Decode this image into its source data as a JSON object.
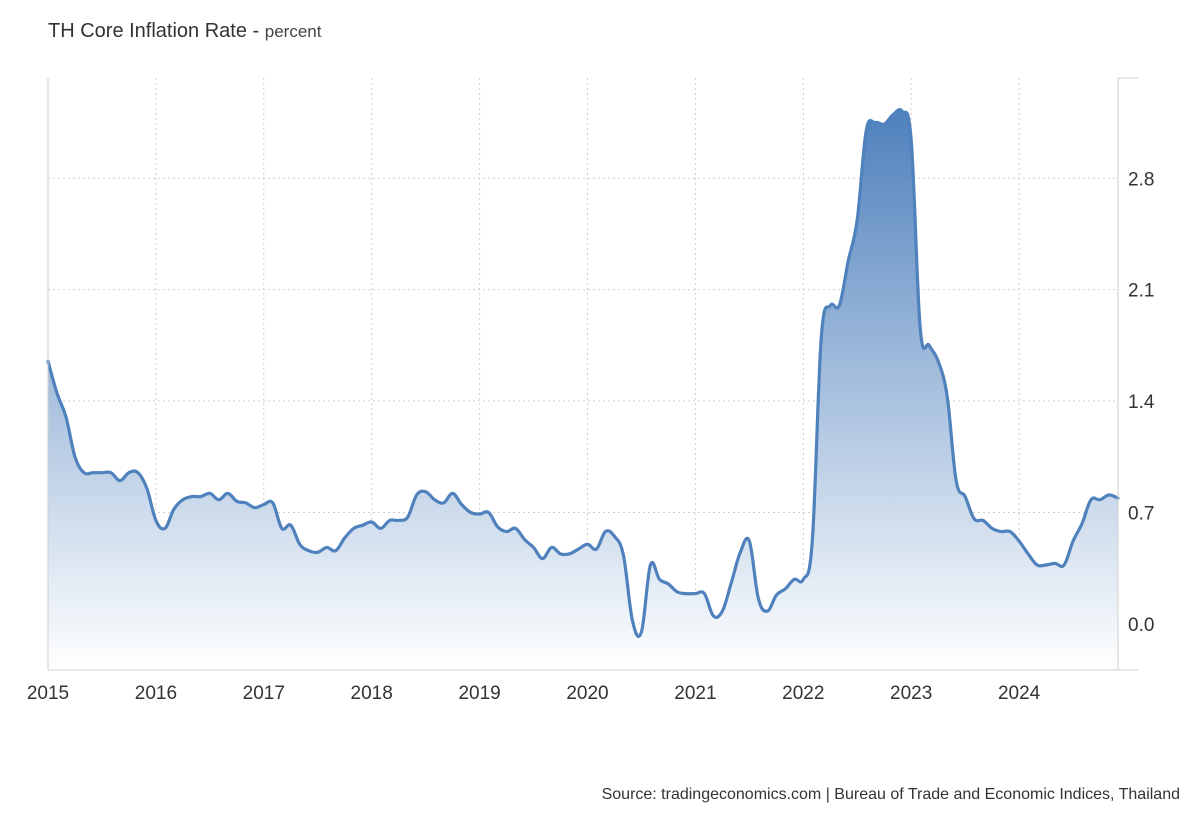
{
  "title": "TH Core Inflation Rate",
  "unit": "percent",
  "source": "Source: tradingeconomics.com | Bureau of Trade and Economic Indices, Thailand",
  "colors": {
    "line": "#4f81bd",
    "fill_top": "#4f81bd",
    "fill_bottom": "#ffffff"
  },
  "chart_data": {
    "type": "area",
    "ylabel": "percent",
    "y_ticks": [
      0.0,
      0.7,
      1.4,
      2.1,
      2.8
    ],
    "y_tick_labels": [
      "0.0",
      "0.7",
      "1.4",
      "2.1",
      "2.8"
    ],
    "ylim": [
      -0.29,
      3.43
    ],
    "x_ticks": [
      "2015",
      "2016",
      "2017",
      "2018",
      "2019",
      "2020",
      "2021",
      "2022",
      "2023",
      "2024"
    ],
    "xlim": [
      "2015-01",
      "2024-12"
    ],
    "grid": true,
    "legend": "none",
    "series": [
      {
        "x": [
          "2015-01",
          "2015-02",
          "2015-03",
          "2015-04",
          "2015-05",
          "2015-06",
          "2015-07",
          "2015-08",
          "2015-09",
          "2015-10",
          "2015-11",
          "2015-12",
          "2016-01",
          "2016-02",
          "2016-03",
          "2016-04",
          "2016-05",
          "2016-06",
          "2016-07",
          "2016-08",
          "2016-09",
          "2016-10",
          "2016-11",
          "2016-12",
          "2017-01",
          "2017-02",
          "2017-03",
          "2017-04",
          "2017-05",
          "2017-06",
          "2017-07",
          "2017-08",
          "2017-09",
          "2017-10",
          "2017-11",
          "2017-12",
          "2018-01",
          "2018-02",
          "2018-03",
          "2018-04",
          "2018-05",
          "2018-06",
          "2018-07",
          "2018-08",
          "2018-09",
          "2018-10",
          "2018-11",
          "2018-12",
          "2019-01",
          "2019-02",
          "2019-03",
          "2019-04",
          "2019-05",
          "2019-06",
          "2019-07",
          "2019-08",
          "2019-09",
          "2019-10",
          "2019-11",
          "2019-12",
          "2020-01",
          "2020-02",
          "2020-03",
          "2020-04",
          "2020-05",
          "2020-06",
          "2020-07",
          "2020-08",
          "2020-09",
          "2020-10",
          "2020-11",
          "2020-12",
          "2021-01",
          "2021-02",
          "2021-03",
          "2021-04",
          "2021-05",
          "2021-06",
          "2021-07",
          "2021-08",
          "2021-09",
          "2021-10",
          "2021-11",
          "2021-12",
          "2022-01",
          "2022-02",
          "2022-03",
          "2022-04",
          "2022-05",
          "2022-06",
          "2022-07",
          "2022-08",
          "2022-09",
          "2022-10",
          "2022-11",
          "2022-12",
          "2023-01",
          "2023-02",
          "2023-03",
          "2023-04",
          "2023-05",
          "2023-06",
          "2023-07",
          "2023-08",
          "2023-09",
          "2023-10",
          "2023-11",
          "2023-12",
          "2024-01",
          "2024-02",
          "2024-03",
          "2024-04",
          "2024-05",
          "2024-06",
          "2024-07",
          "2024-08",
          "2024-09",
          "2024-10",
          "2024-11",
          "2024-12"
        ],
        "values": [
          1.65,
          1.45,
          1.3,
          1.05,
          0.95,
          0.95,
          0.95,
          0.95,
          0.9,
          0.95,
          0.95,
          0.85,
          0.65,
          0.6,
          0.72,
          0.78,
          0.8,
          0.8,
          0.82,
          0.78,
          0.82,
          0.77,
          0.76,
          0.73,
          0.75,
          0.76,
          0.6,
          0.62,
          0.5,
          0.46,
          0.45,
          0.48,
          0.46,
          0.54,
          0.6,
          0.62,
          0.64,
          0.6,
          0.65,
          0.65,
          0.67,
          0.81,
          0.83,
          0.78,
          0.76,
          0.82,
          0.75,
          0.7,
          0.69,
          0.7,
          0.61,
          0.58,
          0.6,
          0.53,
          0.48,
          0.41,
          0.48,
          0.44,
          0.44,
          0.47,
          0.5,
          0.47,
          0.58,
          0.55,
          0.43,
          0.02,
          -0.05,
          0.37,
          0.28,
          0.25,
          0.2,
          0.19,
          0.19,
          0.19,
          0.05,
          0.08,
          0.26,
          0.45,
          0.52,
          0.16,
          0.08,
          0.18,
          0.22,
          0.28,
          0.28,
          0.52,
          1.8,
          2.0,
          2.0,
          2.28,
          2.54,
          3.1,
          3.15,
          3.14,
          3.2,
          3.22,
          3.04,
          1.86,
          1.75,
          1.65,
          1.43,
          0.9,
          0.8,
          0.66,
          0.65,
          0.6,
          0.58,
          0.58,
          0.52,
          0.44,
          0.37,
          0.37,
          0.38,
          0.37,
          0.52,
          0.63,
          0.78,
          0.78,
          0.81,
          0.79
        ]
      }
    ]
  }
}
